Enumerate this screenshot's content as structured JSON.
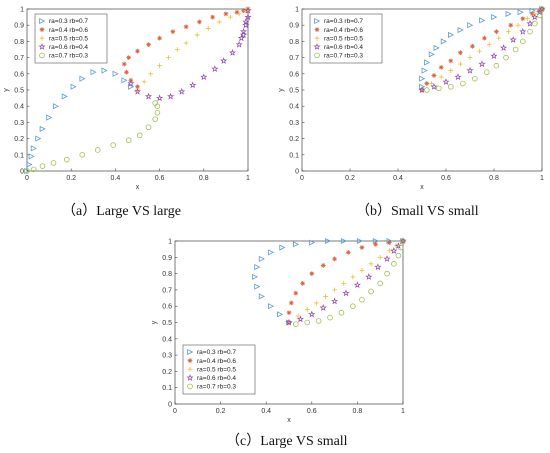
{
  "labels": {
    "series_names": [
      "ra=0.3 rb=0.7",
      "ra=0.4 rb=0.6",
      "ra=0.5 rb=0.5",
      "ra=0.6 rb=0.4",
      "ra=0.7 rb=0.3"
    ]
  },
  "colors": {
    "s1": "#5b9bd5",
    "s2": "#d9603b",
    "s3": "#e8c040",
    "s4": "#8e44ad",
    "s5": "#9fbf4a"
  },
  "chart_data": [
    {
      "type": "scatter",
      "caption": "（a）Large VS large",
      "xlabel": "x",
      "ylabel": "y",
      "xlim": [
        0,
        1
      ],
      "ylim": [
        0,
        1
      ],
      "xticks": [
        0,
        0.2,
        0.4,
        0.6,
        0.8,
        1
      ],
      "yticks": [
        0,
        0.1,
        0.2,
        0.3,
        0.4,
        0.5,
        0.6,
        0.7,
        0.8,
        0.9,
        1
      ],
      "legend_position": "top-left",
      "series": [
        {
          "name": "ra=0.3 rb=0.7",
          "marker": "triangle",
          "color": "#5b9bd5",
          "x": [
            0.0,
            0.01,
            0.02,
            0.03,
            0.05,
            0.07,
            0.1,
            0.13,
            0.17,
            0.21,
            0.25,
            0.3,
            0.35,
            0.4,
            0.44,
            0.47
          ],
          "y": [
            0.0,
            0.04,
            0.09,
            0.14,
            0.2,
            0.26,
            0.33,
            0.4,
            0.46,
            0.52,
            0.57,
            0.61,
            0.62,
            0.6,
            0.56,
            0.52
          ]
        },
        {
          "name": "ra=0.4 rb=0.6",
          "marker": "asterisk",
          "color": "#d9603b",
          "x": [
            0.5,
            0.47,
            0.45,
            0.44,
            0.46,
            0.5,
            0.55,
            0.6,
            0.66,
            0.72,
            0.78,
            0.84,
            0.9,
            0.95,
            0.98,
            1.0
          ],
          "y": [
            0.52,
            0.56,
            0.61,
            0.66,
            0.7,
            0.74,
            0.78,
            0.82,
            0.86,
            0.89,
            0.92,
            0.95,
            0.97,
            0.98,
            0.99,
            1.0
          ]
        },
        {
          "name": "ra=0.5 rb=0.5",
          "marker": "plus",
          "color": "#e8c040",
          "x": [
            0.5,
            0.53,
            0.56,
            0.6,
            0.64,
            0.68,
            0.72,
            0.77,
            0.82,
            0.87,
            0.92,
            0.96,
            0.99,
            1.0
          ],
          "y": [
            0.5,
            0.55,
            0.6,
            0.65,
            0.7,
            0.75,
            0.79,
            0.84,
            0.88,
            0.92,
            0.95,
            0.97,
            0.99,
            1.0
          ]
        },
        {
          "name": "ra=0.6 rb=0.4",
          "marker": "star",
          "color": "#8e44ad",
          "x": [
            0.47,
            0.5,
            0.55,
            0.6,
            0.65,
            0.7,
            0.75,
            0.8,
            0.85,
            0.89,
            0.93,
            0.96,
            0.98,
            0.99,
            1.0,
            1.0,
            0.99,
            0.98,
            0.97
          ],
          "y": [
            0.54,
            0.49,
            0.46,
            0.45,
            0.46,
            0.49,
            0.53,
            0.58,
            0.63,
            0.68,
            0.73,
            0.78,
            0.84,
            0.9,
            0.95,
            0.99,
            0.92,
            0.86,
            0.82
          ]
        },
        {
          "name": "ra=0.7 rb=0.3",
          "marker": "circle",
          "color": "#9fbf4a",
          "x": [
            0.0,
            0.03,
            0.07,
            0.12,
            0.18,
            0.25,
            0.32,
            0.39,
            0.46,
            0.51,
            0.55,
            0.58,
            0.59,
            0.59,
            0.58
          ],
          "y": [
            0.0,
            0.01,
            0.03,
            0.05,
            0.07,
            0.1,
            0.13,
            0.16,
            0.19,
            0.22,
            0.27,
            0.32,
            0.36,
            0.4,
            0.42
          ]
        }
      ]
    },
    {
      "type": "scatter",
      "caption": "（b）Small VS small",
      "xlabel": "x",
      "ylabel": "y",
      "xlim": [
        0,
        1
      ],
      "ylim": [
        0,
        1
      ],
      "xticks": [
        0,
        0.2,
        0.4,
        0.6,
        0.8,
        1
      ],
      "yticks": [
        0,
        0.1,
        0.2,
        0.3,
        0.4,
        0.5,
        0.6,
        0.7,
        0.8,
        0.9,
        1
      ],
      "legend_position": "top-left",
      "series": [
        {
          "name": "ra=0.3 rb=0.7",
          "marker": "triangle",
          "color": "#5b9bd5",
          "x": [
            0.5,
            0.5,
            0.51,
            0.52,
            0.54,
            0.56,
            0.59,
            0.62,
            0.66,
            0.7,
            0.75,
            0.8,
            0.86,
            0.91,
            0.96,
            1.0
          ],
          "y": [
            0.52,
            0.57,
            0.62,
            0.67,
            0.72,
            0.76,
            0.8,
            0.84,
            0.87,
            0.9,
            0.93,
            0.95,
            0.97,
            0.98,
            0.99,
            1.0
          ]
        },
        {
          "name": "ra=0.4 rb=0.6",
          "marker": "asterisk",
          "color": "#d9603b",
          "x": [
            0.5,
            0.52,
            0.55,
            0.58,
            0.62,
            0.66,
            0.71,
            0.76,
            0.81,
            0.87,
            0.92,
            0.96,
            0.99,
            1.0
          ],
          "y": [
            0.5,
            0.54,
            0.59,
            0.64,
            0.68,
            0.73,
            0.77,
            0.82,
            0.86,
            0.9,
            0.94,
            0.97,
            0.99,
            1.0
          ]
        },
        {
          "name": "ra=0.5 rb=0.5",
          "marker": "plus",
          "color": "#e8c040",
          "x": [
            0.5,
            0.54,
            0.58,
            0.62,
            0.66,
            0.7,
            0.74,
            0.78,
            0.82,
            0.86,
            0.9,
            0.94,
            0.97,
            1.0
          ],
          "y": [
            0.5,
            0.54,
            0.58,
            0.62,
            0.66,
            0.7,
            0.74,
            0.78,
            0.82,
            0.86,
            0.9,
            0.94,
            0.97,
            1.0
          ]
        },
        {
          "name": "ra=0.6 rb=0.4",
          "marker": "star",
          "color": "#8e44ad",
          "x": [
            0.5,
            0.55,
            0.6,
            0.65,
            0.7,
            0.75,
            0.8,
            0.84,
            0.88,
            0.92,
            0.95,
            0.97,
            0.99,
            1.0
          ],
          "y": [
            0.5,
            0.52,
            0.55,
            0.58,
            0.62,
            0.66,
            0.71,
            0.76,
            0.81,
            0.86,
            0.91,
            0.95,
            0.98,
            1.0
          ]
        },
        {
          "name": "ra=0.7 rb=0.3",
          "marker": "circle",
          "color": "#9fbf4a",
          "x": [
            0.52,
            0.57,
            0.62,
            0.67,
            0.72,
            0.77,
            0.81,
            0.85,
            0.89,
            0.92,
            0.95,
            0.97,
            0.99,
            1.0
          ],
          "y": [
            0.5,
            0.51,
            0.52,
            0.54,
            0.57,
            0.61,
            0.65,
            0.7,
            0.75,
            0.8,
            0.86,
            0.91,
            0.96,
            1.0
          ]
        }
      ]
    },
    {
      "type": "scatter",
      "caption": "（c）Large VS small",
      "xlabel": "x",
      "ylabel": "y",
      "xlim": [
        0,
        1
      ],
      "ylim": [
        0,
        1
      ],
      "xticks": [
        0,
        0.2,
        0.4,
        0.6,
        0.8,
        1
      ],
      "yticks": [
        0,
        0.1,
        0.2,
        0.3,
        0.4,
        0.5,
        0.6,
        0.7,
        0.8,
        0.9,
        1
      ],
      "legend_position": "bottom-left",
      "series": [
        {
          "name": "ra=0.3 rb=0.7",
          "marker": "triangle",
          "color": "#5b9bd5",
          "x": [
            0.5,
            0.46,
            0.42,
            0.38,
            0.36,
            0.35,
            0.36,
            0.38,
            0.42,
            0.47,
            0.53,
            0.6,
            0.67,
            0.74,
            0.81,
            0.88,
            0.94,
            1.0
          ],
          "y": [
            0.5,
            0.55,
            0.6,
            0.66,
            0.72,
            0.78,
            0.84,
            0.89,
            0.93,
            0.96,
            0.98,
            0.99,
            1.0,
            1.0,
            1.0,
            1.0,
            1.0,
            1.0
          ]
        },
        {
          "name": "ra=0.4 rb=0.6",
          "marker": "asterisk",
          "color": "#d9603b",
          "x": [
            0.5,
            0.5,
            0.51,
            0.53,
            0.56,
            0.6,
            0.65,
            0.7,
            0.76,
            0.82,
            0.88,
            0.94,
            1.0
          ],
          "y": [
            0.5,
            0.56,
            0.62,
            0.68,
            0.74,
            0.8,
            0.85,
            0.89,
            0.93,
            0.96,
            0.98,
            0.99,
            1.0
          ]
        },
        {
          "name": "ra=0.5 rb=0.5",
          "marker": "plus",
          "color": "#e8c040",
          "x": [
            0.5,
            0.54,
            0.58,
            0.62,
            0.66,
            0.7,
            0.74,
            0.78,
            0.82,
            0.86,
            0.9,
            0.94,
            0.97,
            1.0
          ],
          "y": [
            0.5,
            0.54,
            0.58,
            0.62,
            0.66,
            0.7,
            0.74,
            0.78,
            0.82,
            0.86,
            0.9,
            0.94,
            0.97,
            1.0
          ]
        },
        {
          "name": "ra=0.6 rb=0.4",
          "marker": "star",
          "color": "#8e44ad",
          "x": [
            0.5,
            0.55,
            0.6,
            0.65,
            0.7,
            0.75,
            0.8,
            0.85,
            0.89,
            0.93,
            0.96,
            0.98,
            1.0
          ],
          "y": [
            0.5,
            0.52,
            0.55,
            0.59,
            0.63,
            0.68,
            0.73,
            0.78,
            0.84,
            0.89,
            0.94,
            0.97,
            1.0
          ]
        },
        {
          "name": "ra=0.7 rb=0.3",
          "marker": "circle",
          "color": "#9fbf4a",
          "x": [
            0.53,
            0.58,
            0.63,
            0.68,
            0.73,
            0.78,
            0.82,
            0.86,
            0.9,
            0.93,
            0.96,
            0.98,
            0.99,
            1.0
          ],
          "y": [
            0.49,
            0.5,
            0.51,
            0.53,
            0.56,
            0.6,
            0.64,
            0.69,
            0.74,
            0.8,
            0.86,
            0.91,
            0.96,
            1.0
          ]
        }
      ]
    }
  ]
}
